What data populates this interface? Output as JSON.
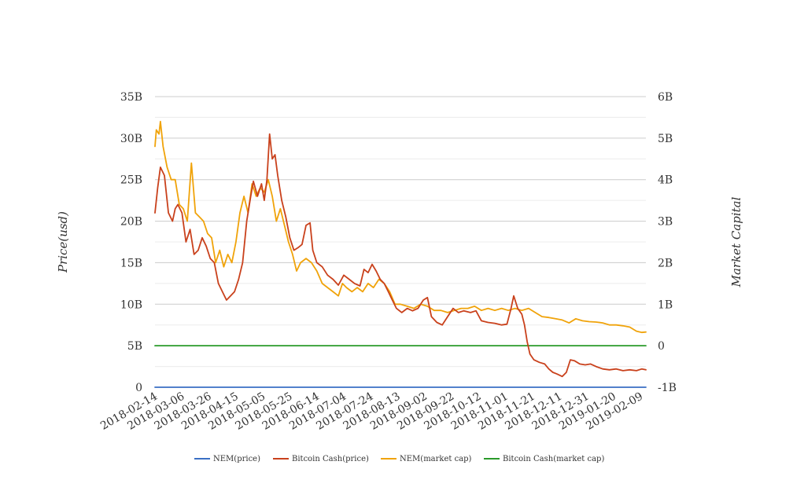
{
  "chart_data": {
    "type": "line",
    "ylabel_left": "Price(usd)",
    "ylabel_right": "Market Capital",
    "y_left": {
      "range": [
        0,
        35000000000
      ],
      "ticks": [
        0,
        5000000000,
        10000000000,
        15000000000,
        20000000000,
        25000000000,
        30000000000,
        35000000000
      ],
      "tick_labels": [
        "0",
        "5B",
        "10B",
        "15B",
        "20B",
        "25B",
        "30B",
        "35B"
      ]
    },
    "y_right": {
      "range": [
        -1000000000,
        6000000000
      ],
      "ticks": [
        -1000000000,
        0,
        1000000000,
        2000000000,
        3000000000,
        4000000000,
        5000000000,
        6000000000
      ],
      "tick_labels": [
        "-1B",
        "0",
        "1B",
        "2B",
        "3B",
        "4B",
        "5B",
        "6B"
      ]
    },
    "x_ticks": [
      "2018-02-14",
      "2018-03-06",
      "2018-03-26",
      "2018-04-15",
      "2018-05-05",
      "2018-05-25",
      "2018-06-14",
      "2018-07-04",
      "2018-07-24",
      "2018-08-13",
      "2018-09-02",
      "2018-09-22",
      "2018-10-12",
      "2018-11-01",
      "2018-11-21",
      "2018-12-11",
      "2018-12-31",
      "2019-01-20",
      "2019-02-09"
    ],
    "x_range": [
      "2018-02-14",
      "2019-02-13"
    ],
    "grid": true,
    "legend_position": "bottom",
    "series": [
      {
        "name": "NEM(price)",
        "color": "#3a6fc4",
        "axis": "left",
        "points": [
          [
            "2018-02-14",
            0.55
          ],
          [
            "2019-02-13",
            0.06
          ]
        ]
      },
      {
        "name": "Bitcoin Cash(price)",
        "color": "#c9411c",
        "axis": "left",
        "points": [
          [
            "2018-02-14",
            21000000000
          ],
          [
            "2018-02-16",
            24000000000
          ],
          [
            "2018-02-18",
            26500000000
          ],
          [
            "2018-02-21",
            25500000000
          ],
          [
            "2018-02-24",
            21000000000
          ],
          [
            "2018-02-27",
            20000000000
          ],
          [
            "2018-03-01",
            21500000000
          ],
          [
            "2018-03-03",
            22000000000
          ],
          [
            "2018-03-06",
            21000000000
          ],
          [
            "2018-03-09",
            17500000000
          ],
          [
            "2018-03-12",
            19000000000
          ],
          [
            "2018-03-15",
            16000000000
          ],
          [
            "2018-03-18",
            16500000000
          ],
          [
            "2018-03-21",
            18000000000
          ],
          [
            "2018-03-24",
            17000000000
          ],
          [
            "2018-03-27",
            15500000000
          ],
          [
            "2018-03-30",
            15000000000
          ],
          [
            "2018-04-02",
            12500000000
          ],
          [
            "2018-04-05",
            11500000000
          ],
          [
            "2018-04-08",
            10500000000
          ],
          [
            "2018-04-11",
            11000000000
          ],
          [
            "2018-04-14",
            11500000000
          ],
          [
            "2018-04-17",
            13000000000
          ],
          [
            "2018-04-20",
            15000000000
          ],
          [
            "2018-04-23",
            20000000000
          ],
          [
            "2018-04-26",
            23000000000
          ],
          [
            "2018-04-28",
            24800000000
          ],
          [
            "2018-05-01",
            23000000000
          ],
          [
            "2018-05-04",
            24500000000
          ],
          [
            "2018-05-06",
            22500000000
          ],
          [
            "2018-05-08",
            25000000000
          ],
          [
            "2018-05-10",
            30500000000
          ],
          [
            "2018-05-12",
            27500000000
          ],
          [
            "2018-05-14",
            28000000000
          ],
          [
            "2018-05-16",
            25500000000
          ],
          [
            "2018-05-19",
            22500000000
          ],
          [
            "2018-05-22",
            20500000000
          ],
          [
            "2018-05-25",
            18000000000
          ],
          [
            "2018-05-28",
            16500000000
          ],
          [
            "2018-05-31",
            16800000000
          ],
          [
            "2018-06-03",
            17200000000
          ],
          [
            "2018-06-06",
            19500000000
          ],
          [
            "2018-06-09",
            19800000000
          ],
          [
            "2018-06-11",
            16500000000
          ],
          [
            "2018-06-14",
            15000000000
          ],
          [
            "2018-06-18",
            14500000000
          ],
          [
            "2018-06-22",
            13500000000
          ],
          [
            "2018-06-26",
            13000000000
          ],
          [
            "2018-06-30",
            12300000000
          ],
          [
            "2018-07-04",
            13500000000
          ],
          [
            "2018-07-08",
            13000000000
          ],
          [
            "2018-07-12",
            12500000000
          ],
          [
            "2018-07-16",
            12200000000
          ],
          [
            "2018-07-19",
            14200000000
          ],
          [
            "2018-07-22",
            13800000000
          ],
          [
            "2018-07-25",
            14800000000
          ],
          [
            "2018-07-28",
            14000000000
          ],
          [
            "2018-07-31",
            13000000000
          ],
          [
            "2018-08-03",
            12500000000
          ],
          [
            "2018-08-06",
            11500000000
          ],
          [
            "2018-08-09",
            10500000000
          ],
          [
            "2018-08-12",
            9500000000
          ],
          [
            "2018-08-16",
            9000000000
          ],
          [
            "2018-08-20",
            9500000000
          ],
          [
            "2018-08-24",
            9200000000
          ],
          [
            "2018-08-28",
            9500000000
          ],
          [
            "2018-09-01",
            10500000000
          ],
          [
            "2018-09-04",
            10800000000
          ],
          [
            "2018-09-07",
            8500000000
          ],
          [
            "2018-09-11",
            7800000000
          ],
          [
            "2018-09-15",
            7500000000
          ],
          [
            "2018-09-19",
            8500000000
          ],
          [
            "2018-09-23",
            9500000000
          ],
          [
            "2018-09-27",
            9000000000
          ],
          [
            "2018-10-01",
            9200000000
          ],
          [
            "2018-10-06",
            9000000000
          ],
          [
            "2018-10-10",
            9200000000
          ],
          [
            "2018-10-14",
            8000000000
          ],
          [
            "2018-10-19",
            7800000000
          ],
          [
            "2018-10-24",
            7700000000
          ],
          [
            "2018-10-29",
            7500000000
          ],
          [
            "2018-11-02",
            7600000000
          ],
          [
            "2018-11-05",
            9500000000
          ],
          [
            "2018-11-07",
            11000000000
          ],
          [
            "2018-11-10",
            9500000000
          ],
          [
            "2018-11-13",
            8800000000
          ],
          [
            "2018-11-15",
            7500000000
          ],
          [
            "2018-11-17",
            5500000000
          ],
          [
            "2018-11-19",
            4000000000
          ],
          [
            "2018-11-22",
            3300000000
          ],
          [
            "2018-11-26",
            3000000000
          ],
          [
            "2018-11-30",
            2800000000
          ],
          [
            "2018-12-03",
            2200000000
          ],
          [
            "2018-12-06",
            1800000000
          ],
          [
            "2018-12-09",
            1600000000
          ],
          [
            "2018-12-13",
            1300000000
          ],
          [
            "2018-12-16",
            1800000000
          ],
          [
            "2018-12-19",
            3300000000
          ],
          [
            "2018-12-22",
            3200000000
          ],
          [
            "2018-12-26",
            2800000000
          ],
          [
            "2018-12-30",
            2700000000
          ],
          [
            "2019-01-03",
            2800000000
          ],
          [
            "2019-01-07",
            2500000000
          ],
          [
            "2019-01-12",
            2200000000
          ],
          [
            "2019-01-17",
            2100000000
          ],
          [
            "2019-01-22",
            2200000000
          ],
          [
            "2019-01-27",
            2000000000
          ],
          [
            "2019-02-01",
            2100000000
          ],
          [
            "2019-02-06",
            2000000000
          ],
          [
            "2019-02-10",
            2200000000
          ],
          [
            "2019-02-13",
            2100000000
          ]
        ]
      },
      {
        "name": "NEM(market cap)",
        "color": "#f0a30a",
        "axis": "right",
        "points": [
          [
            "2018-02-14",
            4800000000.0
          ],
          [
            "2018-02-15",
            5200000000.0
          ],
          [
            "2018-02-17",
            5100000000.0
          ],
          [
            "2018-02-18",
            5400000000.0
          ],
          [
            "2018-02-20",
            4800000000.0
          ],
          [
            "2018-02-23",
            4300000000.0
          ],
          [
            "2018-02-26",
            4000000000.0
          ],
          [
            "2018-03-01",
            4000000000.0
          ],
          [
            "2018-03-04",
            3400000000.0
          ],
          [
            "2018-03-07",
            3300000000.0
          ],
          [
            "2018-03-10",
            3000000000.0
          ],
          [
            "2018-03-13",
            4400000000.0
          ],
          [
            "2018-03-16",
            3200000000.0
          ],
          [
            "2018-03-19",
            3100000000.0
          ],
          [
            "2018-03-22",
            3000000000.0
          ],
          [
            "2018-03-25",
            2700000000.0
          ],
          [
            "2018-03-28",
            2600000000.0
          ],
          [
            "2018-03-31",
            2000000000.0
          ],
          [
            "2018-04-03",
            2300000000.0
          ],
          [
            "2018-04-06",
            1900000000.0
          ],
          [
            "2018-04-09",
            2200000000.0
          ],
          [
            "2018-04-12",
            2000000000.0
          ],
          [
            "2018-04-15",
            2500000000.0
          ],
          [
            "2018-04-18",
            3200000000.0
          ],
          [
            "2018-04-21",
            3600000000.0
          ],
          [
            "2018-04-24",
            3200000000.0
          ],
          [
            "2018-04-27",
            3900000000.0
          ],
          [
            "2018-04-30",
            3600000000.0
          ],
          [
            "2018-05-03",
            3800000000.0
          ],
          [
            "2018-05-06",
            3700000000.0
          ],
          [
            "2018-05-09",
            4000000000.0
          ],
          [
            "2018-05-12",
            3600000000.0
          ],
          [
            "2018-05-15",
            3000000000.0
          ],
          [
            "2018-05-18",
            3300000000.0
          ],
          [
            "2018-05-21",
            2900000000.0
          ],
          [
            "2018-05-24",
            2500000000.0
          ],
          [
            "2018-05-27",
            2200000000.0
          ],
          [
            "2018-05-30",
            1800000000.0
          ],
          [
            "2018-06-02",
            2000000000.0
          ],
          [
            "2018-06-06",
            2100000000.0
          ],
          [
            "2018-06-10",
            2000000000.0
          ],
          [
            "2018-06-14",
            1800000000.0
          ],
          [
            "2018-06-18",
            1500000000.0
          ],
          [
            "2018-06-22",
            1400000000.0
          ],
          [
            "2018-06-26",
            1300000000.0
          ],
          [
            "2018-06-30",
            1200000000.0
          ],
          [
            "2018-07-03",
            1500000000.0
          ],
          [
            "2018-07-06",
            1400000000.0
          ],
          [
            "2018-07-10",
            1300000000.0
          ],
          [
            "2018-07-14",
            1400000000.0
          ],
          [
            "2018-07-18",
            1300000000.0
          ],
          [
            "2018-07-22",
            1500000000.0
          ],
          [
            "2018-07-26",
            1400000000.0
          ],
          [
            "2018-07-30",
            1600000000.0
          ],
          [
            "2018-08-03",
            1500000000.0
          ],
          [
            "2018-08-07",
            1300000000.0
          ],
          [
            "2018-08-11",
            1000000000.0
          ],
          [
            "2018-08-15",
            1000000000.0
          ],
          [
            "2018-08-20",
            950000000.0
          ],
          [
            "2018-08-25",
            900000000.0
          ],
          [
            "2018-08-30",
            1000000000.0
          ],
          [
            "2018-09-04",
            950000000.0
          ],
          [
            "2018-09-09",
            850000000.0
          ],
          [
            "2018-09-14",
            850000000.0
          ],
          [
            "2018-09-19",
            800000000.0
          ],
          [
            "2018-09-24",
            850000000.0
          ],
          [
            "2018-09-29",
            900000000.0
          ],
          [
            "2018-10-04",
            900000000.0
          ],
          [
            "2018-10-09",
            950000000.0
          ],
          [
            "2018-10-14",
            850000000.0
          ],
          [
            "2018-10-19",
            900000000.0
          ],
          [
            "2018-10-24",
            850000000.0
          ],
          [
            "2018-10-29",
            900000000.0
          ],
          [
            "2018-11-03",
            850000000.0
          ],
          [
            "2018-11-08",
            900000000.0
          ],
          [
            "2018-11-13",
            850000000.0
          ],
          [
            "2018-11-18",
            900000000.0
          ],
          [
            "2018-11-23",
            800000000.0
          ],
          [
            "2018-11-28",
            700000000.0
          ],
          [
            "2018-12-03",
            680000000.0
          ],
          [
            "2018-12-08",
            650000000.0
          ],
          [
            "2018-12-13",
            620000000.0
          ],
          [
            "2018-12-18",
            550000000.0
          ],
          [
            "2018-12-23",
            650000000.0
          ],
          [
            "2018-12-28",
            600000000.0
          ],
          [
            "2019-01-02",
            580000000.0
          ],
          [
            "2019-01-07",
            570000000.0
          ],
          [
            "2019-01-12",
            550000000.0
          ],
          [
            "2019-01-17",
            500000000.0
          ],
          [
            "2019-01-22",
            500000000.0
          ],
          [
            "2019-01-27",
            480000000.0
          ],
          [
            "2019-02-01",
            450000000.0
          ],
          [
            "2019-02-06",
            350000000.0
          ],
          [
            "2019-02-10",
            320000000.0
          ],
          [
            "2019-02-13",
            330000000.0
          ]
        ]
      },
      {
        "name": "Bitcoin Cash(market cap)",
        "color": "#2a9a2a",
        "axis": "right",
        "points": [
          [
            "2018-02-14",
            0.0
          ],
          [
            "2019-02-13",
            0.0
          ]
        ]
      }
    ]
  }
}
